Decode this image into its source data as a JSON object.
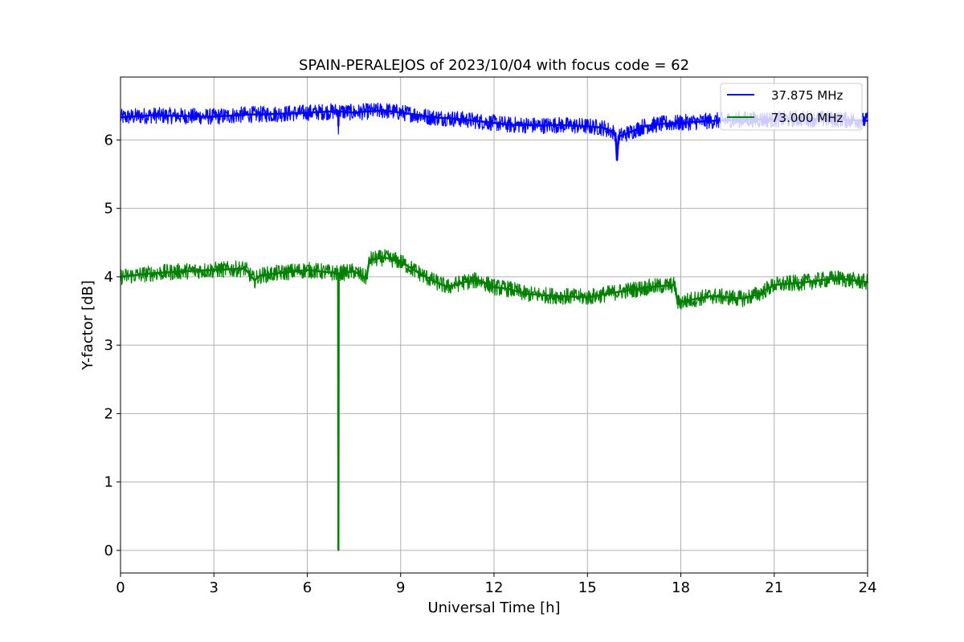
{
  "chart_data": {
    "type": "line",
    "title": "SPAIN-PERALEJOS of 2023/10/04 with focus code = 62",
    "xlabel": "Universal Time [h]",
    "ylabel": "Y-factor [dB]",
    "xlim": [
      0,
      24
    ],
    "ylim": [
      -0.33,
      6.92
    ],
    "xticks": [
      0,
      3,
      6,
      9,
      12,
      15,
      18,
      21,
      24
    ],
    "yticks": [
      0,
      1,
      2,
      3,
      4,
      5,
      6
    ],
    "grid": true,
    "legend_position": "top-right",
    "noise_band_db": 0.12,
    "series": [
      {
        "name": "37.875 MHz",
        "color": "#0000ff",
        "x": [
          0,
          1,
          2,
          3,
          4,
          5,
          6,
          6.5,
          6.99,
          7.0,
          7.01,
          7.5,
          8,
          8.5,
          9,
          9.5,
          10,
          10.5,
          11,
          12,
          12.5,
          13,
          13.5,
          14,
          15,
          15.5,
          15.9,
          15.95,
          16.0,
          16.3,
          16.8,
          17.5,
          18,
          19,
          20,
          21,
          22,
          23,
          24
        ],
        "y": [
          6.33,
          6.36,
          6.35,
          6.34,
          6.37,
          6.38,
          6.4,
          6.41,
          6.42,
          6.2,
          6.42,
          6.4,
          6.42,
          6.43,
          6.4,
          6.37,
          6.33,
          6.32,
          6.3,
          6.25,
          6.22,
          6.22,
          6.21,
          6.22,
          6.2,
          6.18,
          6.1,
          5.7,
          6.05,
          6.1,
          6.2,
          6.24,
          6.25,
          6.28,
          6.3,
          6.3,
          6.31,
          6.3,
          6.28
        ]
      },
      {
        "name": "73.000 MHz",
        "color": "#008000",
        "x": [
          0,
          1,
          2,
          3,
          4,
          4.3,
          4.5,
          5,
          6,
          6.99,
          7.0,
          7.01,
          7.5,
          7.9,
          8.0,
          8.5,
          9,
          9.5,
          10,
          10.5,
          11,
          11.5,
          12,
          12.5,
          13,
          14,
          15,
          16,
          17,
          17.8,
          17.9,
          18.5,
          19,
          20,
          20.5,
          21,
          22,
          23,
          24
        ],
        "y": [
          4.0,
          4.05,
          4.08,
          4.1,
          4.12,
          3.95,
          4.02,
          4.05,
          4.1,
          4.05,
          0.0,
          4.05,
          4.08,
          3.98,
          4.25,
          4.28,
          4.22,
          4.08,
          3.95,
          3.85,
          3.92,
          3.95,
          3.85,
          3.82,
          3.75,
          3.72,
          3.7,
          3.78,
          3.85,
          3.88,
          3.62,
          3.68,
          3.72,
          3.68,
          3.75,
          3.88,
          3.92,
          3.98,
          3.92
        ]
      }
    ]
  }
}
